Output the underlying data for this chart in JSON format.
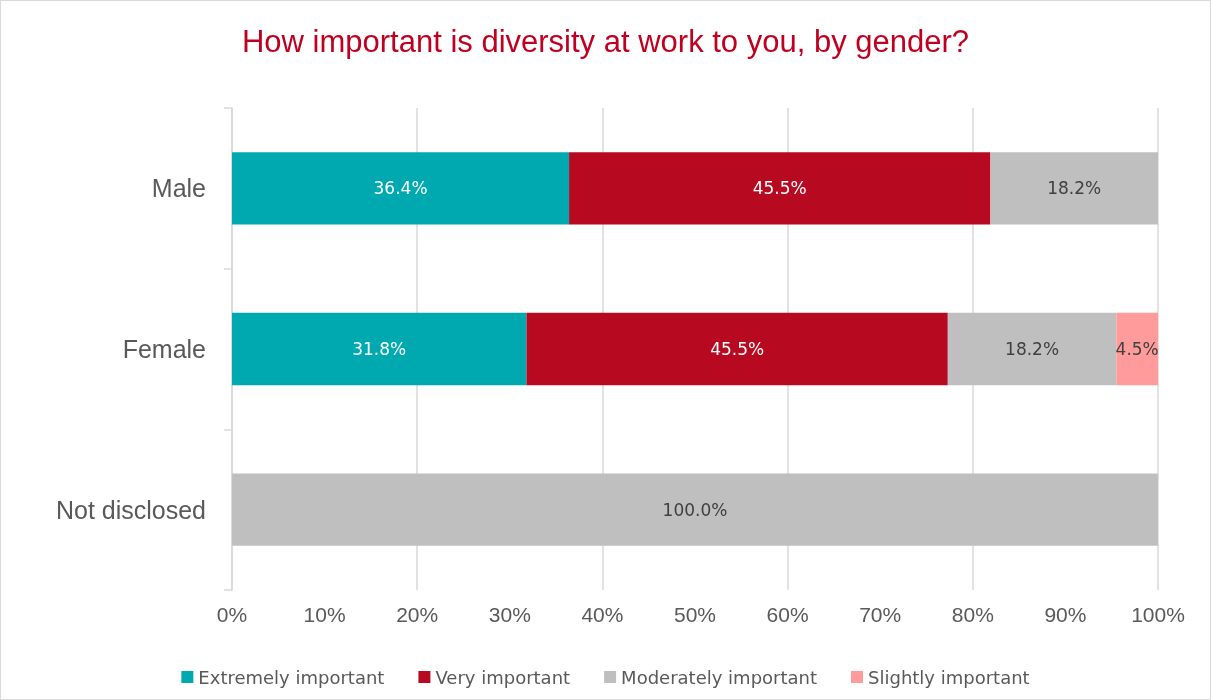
{
  "chart_data": {
    "type": "bar",
    "orientation": "horizontal",
    "stacked": true,
    "title": "How important is diversity at work to you, by gender?",
    "categories": [
      "Male",
      "Female",
      "Not disclosed"
    ],
    "series": [
      {
        "name": "Extremely important",
        "color": "#00a9b0",
        "values": [
          36.4,
          31.8,
          null
        ],
        "value_labels": [
          "36.4%",
          "31.8%",
          null
        ]
      },
      {
        "name": "Very important",
        "color": "#b70a21",
        "values": [
          45.5,
          45.5,
          null
        ],
        "value_labels": [
          "45.5%",
          "45.5%",
          null
        ]
      },
      {
        "name": "Moderately important",
        "color": "#bfbfbf",
        "values": [
          18.2,
          18.2,
          100.0
        ],
        "value_labels": [
          "18.2%",
          "18.2%",
          "100.0%"
        ]
      },
      {
        "name": "Slightly important",
        "color": "#ff9b9b",
        "values": [
          null,
          4.5,
          null
        ],
        "value_labels": [
          null,
          "4.5%",
          null
        ]
      }
    ],
    "xlim": [
      0,
      100
    ],
    "xticks": [
      {
        "value": 0,
        "label": "0%"
      },
      {
        "value": 10,
        "label": "10%"
      },
      {
        "value": 20,
        "label": "20%"
      },
      {
        "value": 30,
        "label": "30%"
      },
      {
        "value": 40,
        "label": "40%"
      },
      {
        "value": 50,
        "label": "50%"
      },
      {
        "value": 60,
        "label": "60%"
      },
      {
        "value": 70,
        "label": "70%"
      },
      {
        "value": 80,
        "label": "80%"
      },
      {
        "value": 90,
        "label": "90%"
      },
      {
        "value": 100,
        "label": "100%"
      }
    ],
    "grid": "x",
    "legend": "bottom"
  }
}
